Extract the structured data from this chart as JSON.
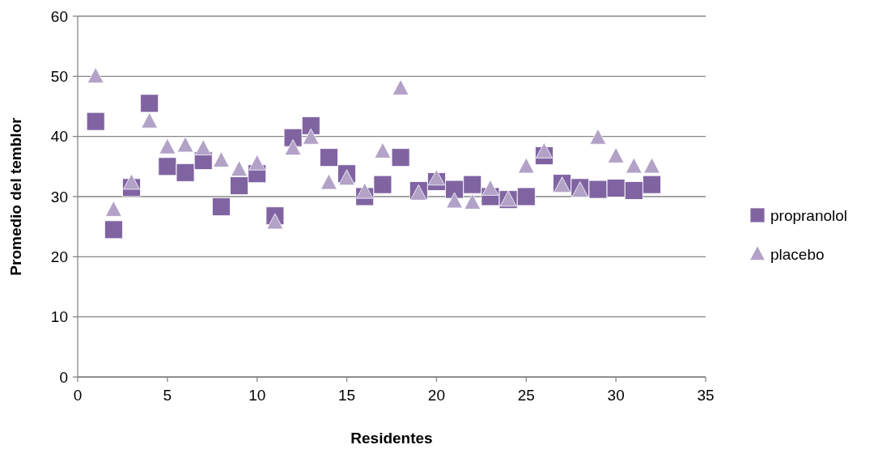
{
  "chart_data": {
    "type": "scatter",
    "xlabel": "Residentes",
    "ylabel": "Promedio del temblor",
    "xlim": [
      0,
      35
    ],
    "xticks": [
      0,
      5,
      10,
      15,
      20,
      25,
      30,
      35
    ],
    "ylim": [
      0,
      60
    ],
    "yticks": [
      0,
      10,
      20,
      30,
      40,
      50,
      60
    ],
    "grid": "y",
    "legend": "right",
    "x": [
      1,
      2,
      3,
      4,
      5,
      6,
      7,
      8,
      9,
      10,
      11,
      12,
      13,
      14,
      15,
      16,
      17,
      18,
      19,
      20,
      21,
      22,
      23,
      24,
      25,
      26,
      27,
      28,
      29,
      30,
      31,
      32
    ],
    "series": [
      {
        "name": "propranolol",
        "color": "#8064a2",
        "marker": "square",
        "values": [
          42.5,
          24.5,
          31.5,
          45.5,
          35,
          34,
          36,
          28.3,
          31.8,
          33.8,
          26.8,
          39.8,
          41.8,
          36.5,
          33.8,
          30,
          32,
          36.5,
          31,
          32.5,
          31.2,
          32,
          30,
          29.5,
          30,
          36.8,
          32.2,
          31.5,
          31.2,
          31.4,
          31,
          32
        ]
      },
      {
        "name": "placebo",
        "color": "#b3a2c7",
        "marker": "triangle",
        "values": [
          50,
          27.8,
          32.3,
          42.5,
          38.2,
          38.5,
          38,
          36,
          34.5,
          35.5,
          25.7,
          38,
          39.8,
          32.3,
          33,
          30.8,
          37.5,
          48,
          30.5,
          33,
          29.2,
          29,
          31.3,
          29.5,
          35,
          37.5,
          31.8,
          31,
          39.8,
          36.7,
          35,
          35
        ]
      }
    ]
  }
}
